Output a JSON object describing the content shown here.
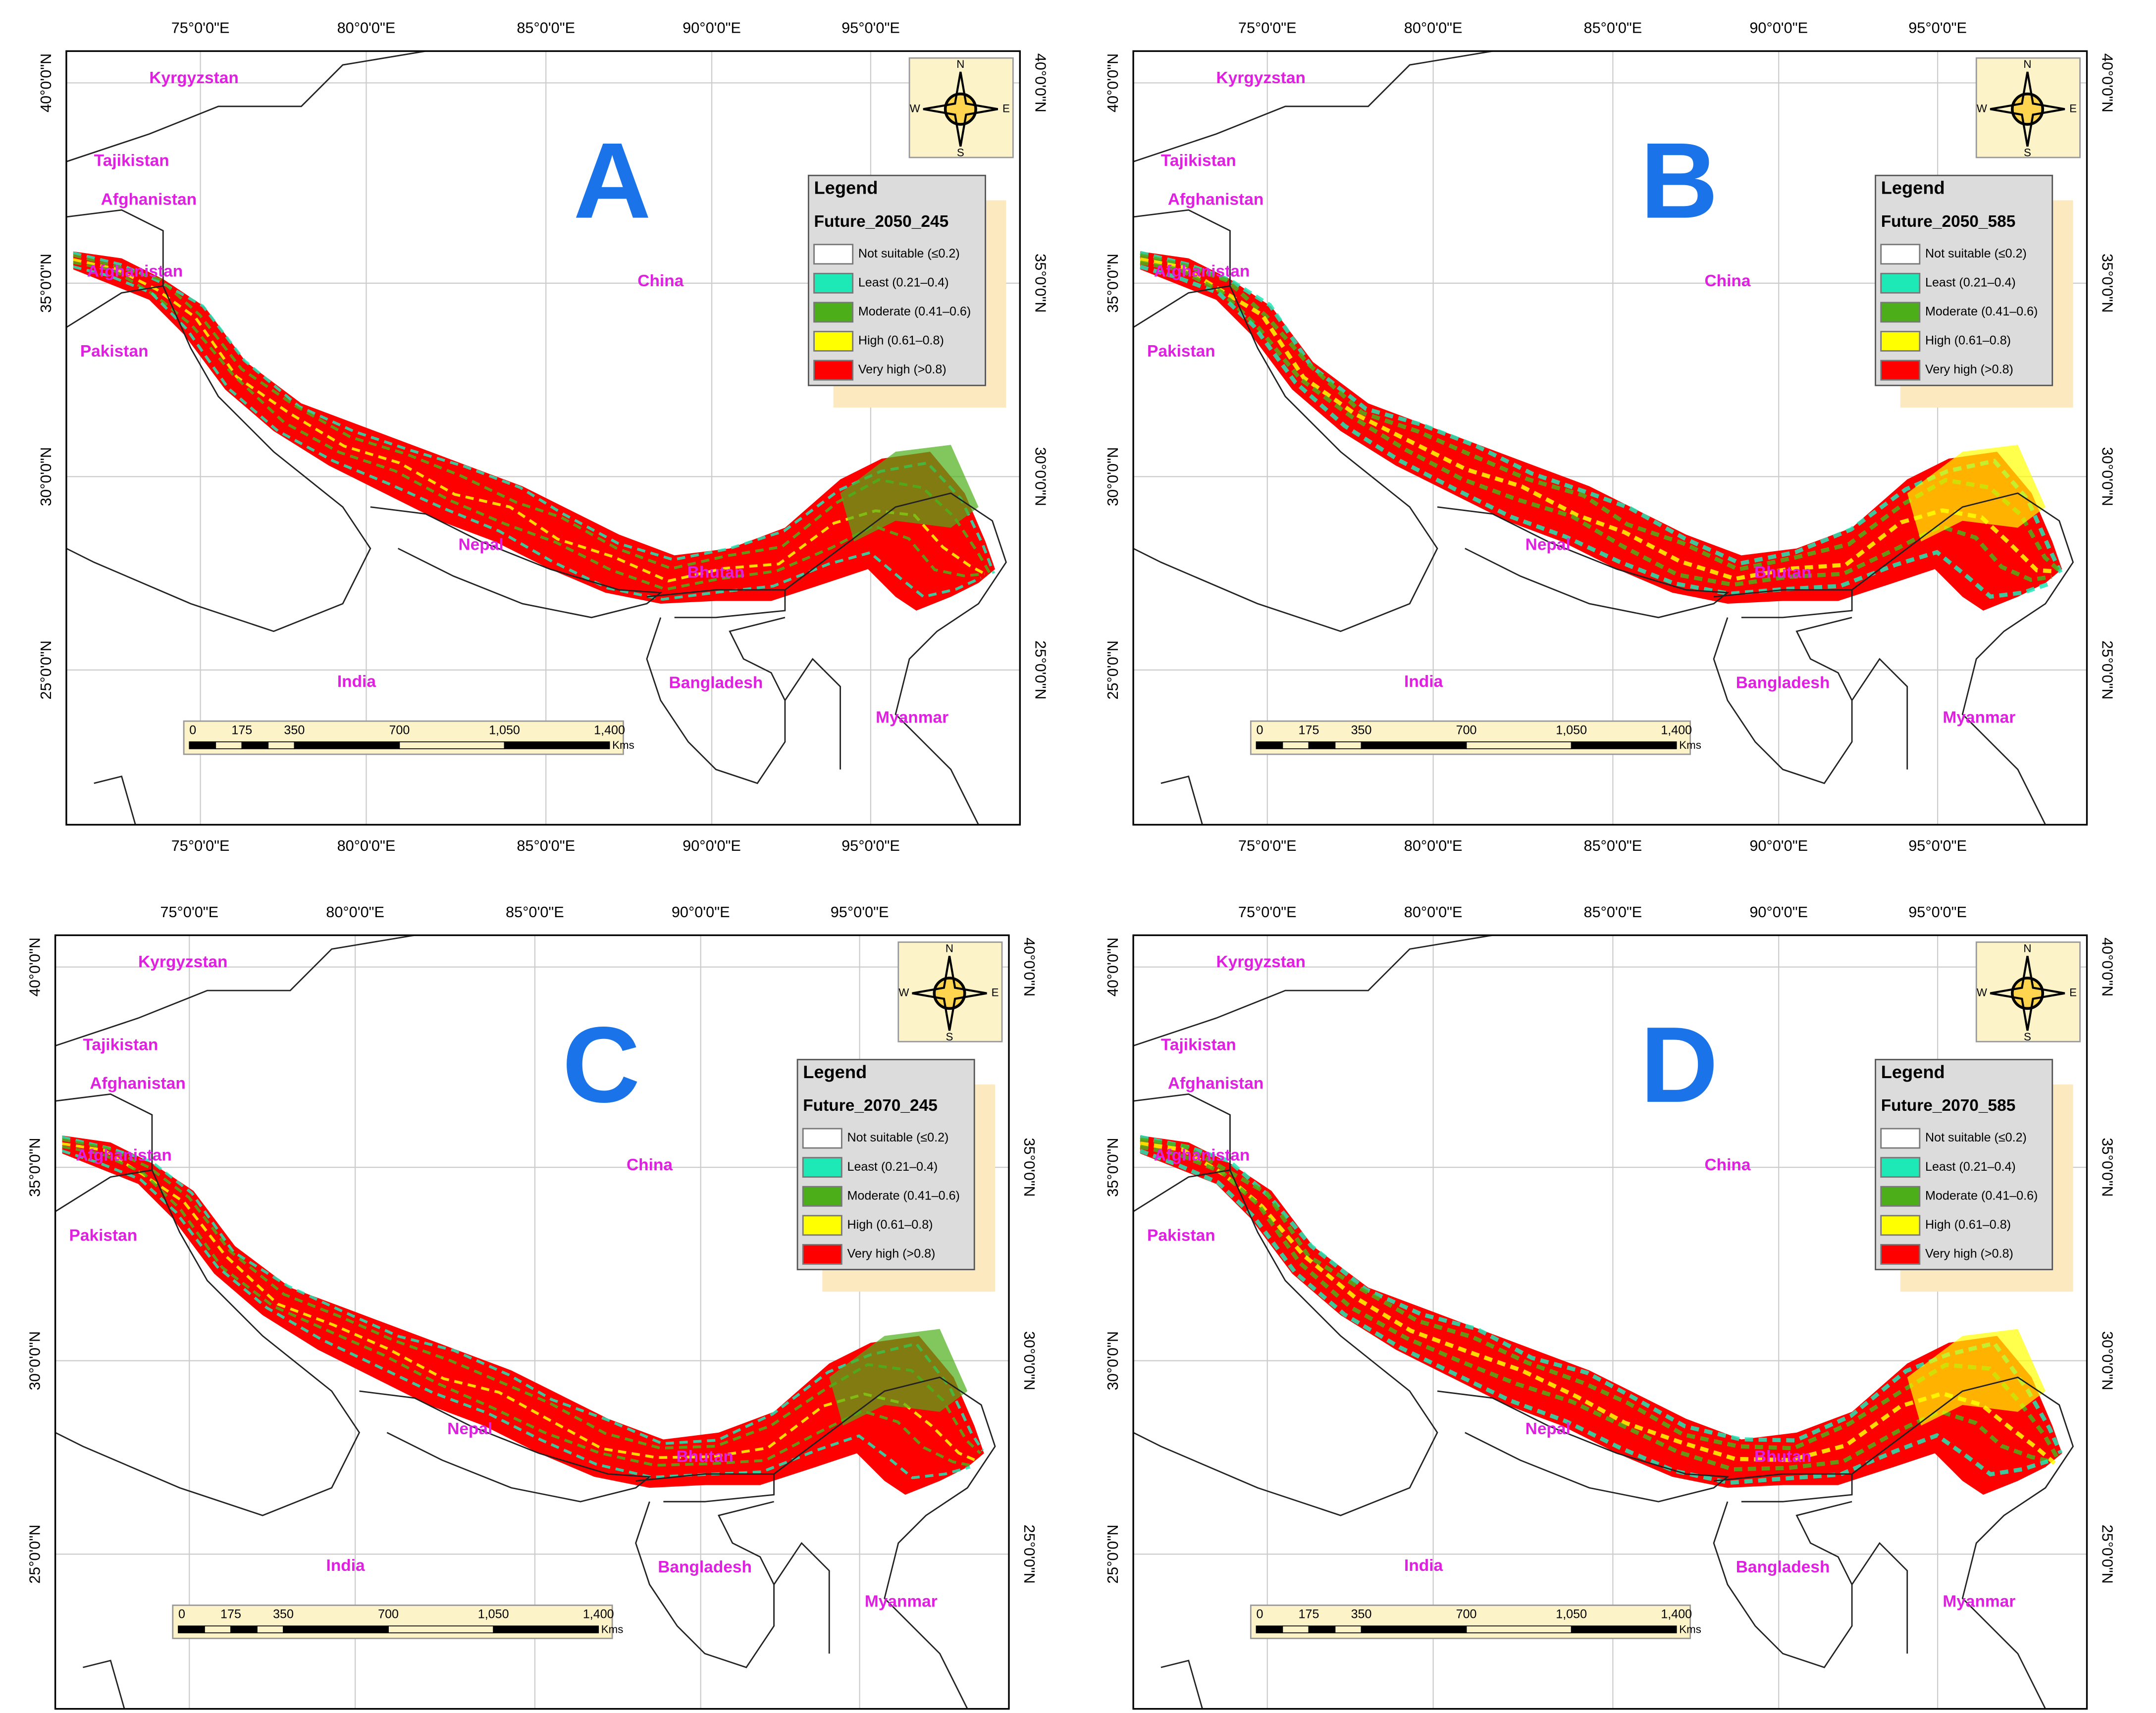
{
  "panels": [
    {
      "letter": "A",
      "legend_title": "Future_2050_245"
    },
    {
      "letter": "B",
      "legend_title": "Future_2050_585"
    },
    {
      "letter": "C",
      "legend_title": "Future_2070_245"
    },
    {
      "letter": "D",
      "legend_title": "Future_2070_585"
    }
  ],
  "legend": {
    "heading": "Legend",
    "items": [
      "Not suitable (≤0.2)",
      "Least (0.21–0.4)",
      "Moderate (0.41–0.6)",
      "High (0.61–0.8)",
      "Very high (>0.8)"
    ],
    "colors": [
      "#ffffff",
      "#1de9b6",
      "#4caf1a",
      "#ffff00",
      "#ff0000"
    ]
  },
  "countries": [
    "Kyrgyzstan",
    "Tajikistan",
    "Afghanistan",
    "Afghanistan",
    "Pakistan",
    "China",
    "Nepal",
    "Bhutan",
    "India",
    "Bangladesh",
    "Myanmar"
  ],
  "longitude_labels": [
    "75°0'0\"E",
    "80°0'0\"E",
    "85°0'0\"E",
    "90°0'0\"E",
    "95°0'0\"E"
  ],
  "latitude_labels": [
    "40°0'0\"N",
    "35°0'0\"N",
    "30°0'0\"N",
    "25°0'0\"N"
  ],
  "scale_labels": [
    "0",
    "175",
    "350",
    "700",
    "1,050",
    "1,400"
  ],
  "scale_unit": "Kms",
  "compass": [
    "N",
    "E",
    "S",
    "W"
  ]
}
